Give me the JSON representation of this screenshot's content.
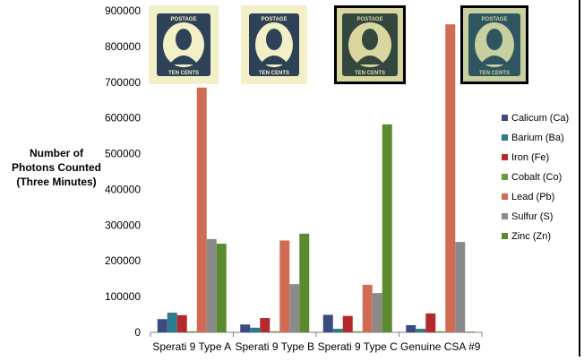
{
  "chart_data": {
    "type": "bar",
    "title": "",
    "xlabel": "",
    "ylabel": [
      "Number of",
      "Photons Counted",
      "(Three Minutes)"
    ],
    "ylim": [
      0,
      900000
    ],
    "yticks": [
      0,
      100000,
      200000,
      300000,
      400000,
      500000,
      600000,
      700000,
      800000,
      900000
    ],
    "ytick_labels": [
      "0",
      "100000",
      "200000",
      "300000",
      "400000",
      "500000",
      "600000",
      "700000",
      "800000",
      "900000"
    ],
    "grid": false,
    "legend_position": "right",
    "categories": [
      "Sperati 9 Type A",
      "Sperati 9 Type B",
      "Sperati 9 Type C",
      "Genuine CSA #9"
    ],
    "series": [
      {
        "name": "Calicum (Ca)",
        "color": "#3b4a7f",
        "values": [
          37000,
          22000,
          49000,
          20000
        ]
      },
      {
        "name": "Barium (Ba)",
        "color": "#2b7b8e",
        "values": [
          55000,
          13000,
          10000,
          10000
        ]
      },
      {
        "name": "Iron (Fe)",
        "color": "#b22a2e",
        "values": [
          48000,
          40000,
          46000,
          53000
        ]
      },
      {
        "name": "Cobalt (Co)",
        "color": "#6b9a3c",
        "values": [
          3000,
          3000,
          3000,
          3000
        ]
      },
      {
        "name": "Lead (Pb)",
        "color": "#d26b54",
        "values": [
          685000,
          257000,
          133000,
          862000
        ]
      },
      {
        "name": "Sulfur (S)",
        "color": "#8a8a8a",
        "values": [
          261000,
          135000,
          110000,
          253000
        ]
      },
      {
        "name": "Zinc (Zn)",
        "color": "#5c8a2e",
        "values": [
          248000,
          276000,
          582000,
          2000
        ]
      }
    ],
    "stamps": [
      {
        "name": "stamp-sperati-type-a",
        "top_text": "POSTAGE",
        "bottom_text": "TEN CENTS",
        "bg": "#f3efc6",
        "ink": "#2d4257",
        "border": "#f3efc6"
      },
      {
        "name": "stamp-sperati-type-b",
        "top_text": "POSTAGE",
        "bottom_text": "TEN CENTS",
        "bg": "#f3efc6",
        "ink": "#2d4257",
        "border": "#f3efc6"
      },
      {
        "name": "stamp-sperati-type-c",
        "top_text": "POSTAGE",
        "bottom_text": "TEN CENTS",
        "bg": "#d9d6a0",
        "ink": "#33473f",
        "border": "#000000"
      },
      {
        "name": "stamp-genuine-csa-9",
        "top_text": "POSTAGE",
        "bottom_text": "TEN CENTS",
        "bg": "#c8d0a0",
        "ink": "#2f5560",
        "border": "#000000"
      }
    ]
  }
}
